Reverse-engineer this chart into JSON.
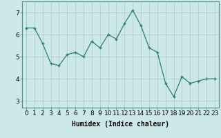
{
  "x": [
    0,
    1,
    2,
    3,
    4,
    5,
    6,
    7,
    8,
    9,
    10,
    11,
    12,
    13,
    14,
    15,
    16,
    17,
    18,
    19,
    20,
    21,
    22,
    23
  ],
  "y": [
    6.3,
    6.3,
    5.6,
    4.7,
    4.6,
    5.1,
    5.2,
    5.0,
    5.7,
    5.4,
    6.0,
    5.8,
    6.5,
    7.1,
    6.4,
    5.4,
    5.2,
    3.8,
    3.2,
    4.1,
    3.8,
    3.9,
    4.0,
    4.0
  ],
  "line_color": "#2e7d6e",
  "marker": "+",
  "bg_color": "#cce8e8",
  "grid_color": "#b0cccc",
  "xlabel": "Humidex (Indice chaleur)",
  "xlabel_fontsize": 7,
  "tick_fontsize": 6.5,
  "ylim": [
    2.7,
    7.5
  ],
  "yticks": [
    3,
    4,
    5,
    6,
    7
  ],
  "xlim": [
    -0.5,
    23.5
  ]
}
